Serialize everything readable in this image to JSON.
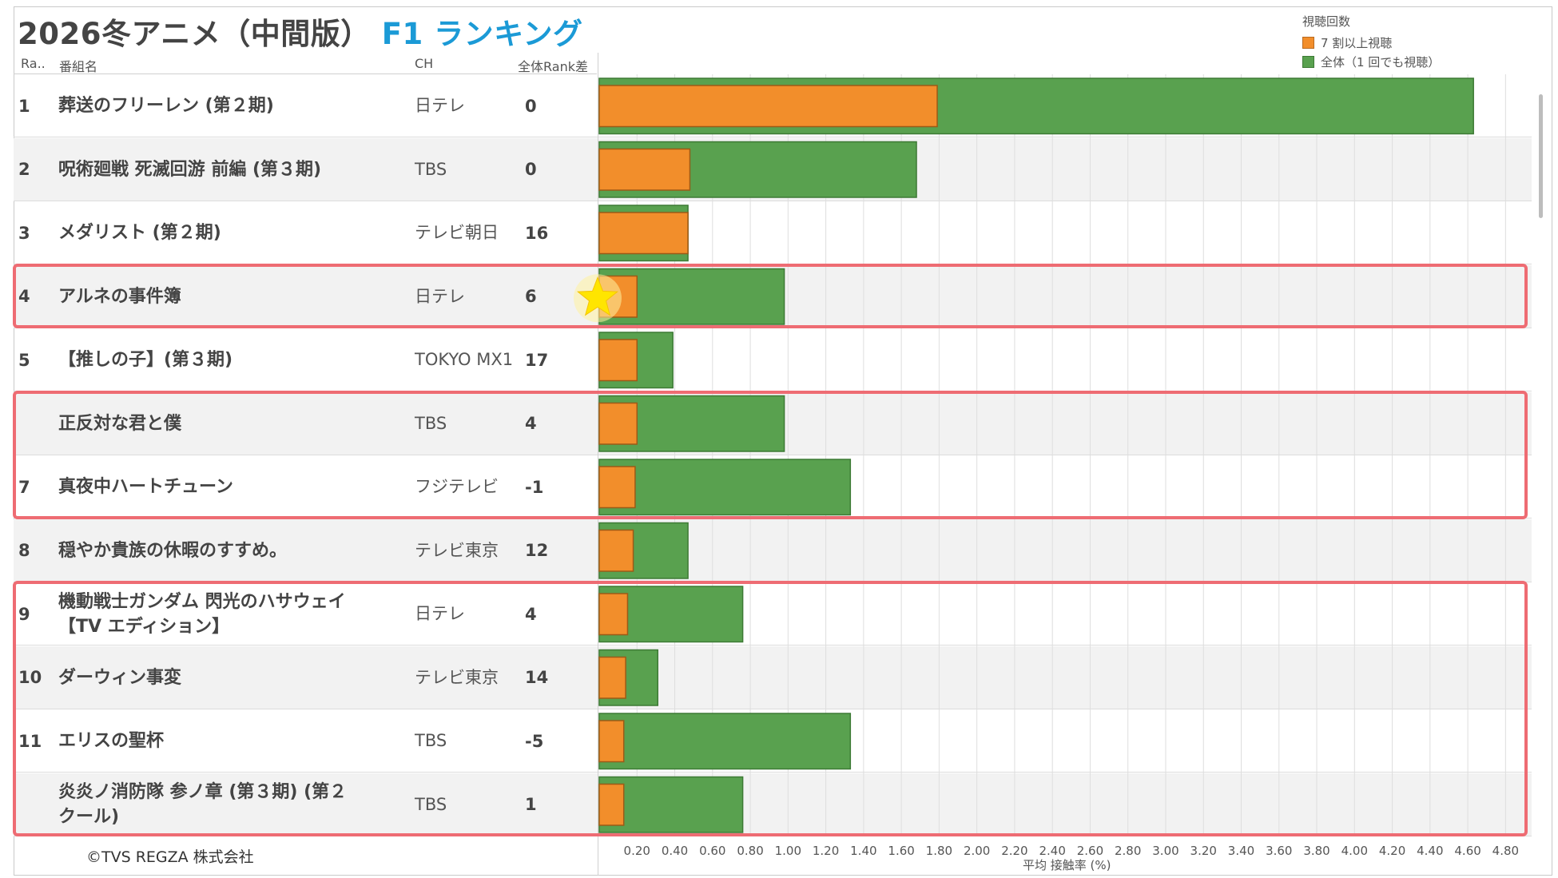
{
  "title": "2026冬アニメ（中間版）",
  "title_accent": "F1 ランキング",
  "legend": {
    "title": "視聴回数",
    "items": [
      {
        "label": "7 割以上視聴",
        "color": "#f28e2b"
      },
      {
        "label": "全体（1 回でも視聴）",
        "color": "#59a14f"
      }
    ]
  },
  "headers": {
    "rank": "Ra..",
    "name": "番組名",
    "ch": "CH",
    "diff": "全体Rank差"
  },
  "copyright": "©TVS REGZA 株式会社",
  "chart_data": {
    "type": "bar",
    "orientation": "horizontal",
    "xlabel": "平均 接触率 (%)",
    "xlim": [
      0,
      4.9
    ],
    "ticks": [
      "0.20",
      "0.40",
      "0.60",
      "0.80",
      "1.00",
      "1.20",
      "1.40",
      "1.60",
      "1.80",
      "2.00",
      "2.20",
      "2.40",
      "2.60",
      "2.80",
      "3.00",
      "3.20",
      "3.40",
      "3.60",
      "3.80",
      "4.00",
      "4.20",
      "4.40",
      "4.60",
      "4.80"
    ],
    "grid": true,
    "legend_position": "top-right",
    "categories": [
      "葬送のフリーレン (第２期)",
      "呪術廻戦 死滅回游 前編 (第３期)",
      "メダリスト (第２期)",
      "アルネの事件簿",
      "【推しの子】(第３期)",
      "正反対な君と僕",
      "真夜中ハートチューン",
      "穏やか貴族の休暇のすすめ。",
      "機動戦士ガンダム 閃光のハサウェイ【TV エディション】",
      "ダーウィン事変",
      "エリスの聖杯",
      "炎炎ノ消防隊 参ノ章 (第３期) (第２ クール)"
    ],
    "series": [
      {
        "name": "全体（1 回でも視聴）",
        "color": "#59a14f",
        "values": [
          4.63,
          1.68,
          0.47,
          0.98,
          0.39,
          0.98,
          1.33,
          0.47,
          0.76,
          0.31,
          1.33,
          0.76
        ]
      },
      {
        "name": "7 割以上視聴",
        "color": "#f28e2b",
        "values": [
          1.79,
          0.48,
          0.47,
          0.2,
          0.2,
          0.2,
          0.19,
          0.18,
          0.15,
          0.14,
          0.13,
          0.13
        ]
      }
    ]
  },
  "rows": [
    {
      "rank": "1",
      "name": "葬送のフリーレン (第２期)",
      "ch": "日テレ",
      "diff": "0"
    },
    {
      "rank": "2",
      "name": "呪術廻戦 死滅回游 前編 (第３期)",
      "ch": "TBS",
      "diff": "0"
    },
    {
      "rank": "3",
      "name": "メダリスト (第２期)",
      "ch": "テレビ朝日",
      "diff": "16"
    },
    {
      "rank": "4",
      "name": "アルネの事件簿",
      "ch": "日テレ",
      "diff": "6"
    },
    {
      "rank": "5",
      "name": "【推しの子】(第３期)",
      "ch": "TOKYO MX1",
      "diff": "17"
    },
    {
      "rank": "",
      "name": "正反対な君と僕",
      "ch": "TBS",
      "diff": "4"
    },
    {
      "rank": "7",
      "name": "真夜中ハートチューン",
      "ch": "フジテレビ",
      "diff": "-1"
    },
    {
      "rank": "8",
      "name": "穏やか貴族の休暇のすすめ。",
      "ch": "テレビ東京",
      "diff": "12"
    },
    {
      "rank": "9",
      "name": "機動戦士ガンダム 閃光のハサウェイ【TV エディション】",
      "ch": "日テレ",
      "diff": "4"
    },
    {
      "rank": "10",
      "name": "ダーウィン事変",
      "ch": "テレビ東京",
      "diff": "14"
    },
    {
      "rank": "11",
      "name": "エリスの聖杯",
      "ch": "TBS",
      "diff": "-5"
    },
    {
      "rank": "",
      "name": "炎炎ノ消防隊 参ノ章 (第３期) (第２ クール)",
      "ch": "TBS",
      "diff": "1"
    }
  ],
  "highlight_groups": [
    [
      4,
      4
    ],
    [
      6,
      7
    ],
    [
      9,
      12
    ]
  ],
  "star_row": 4
}
